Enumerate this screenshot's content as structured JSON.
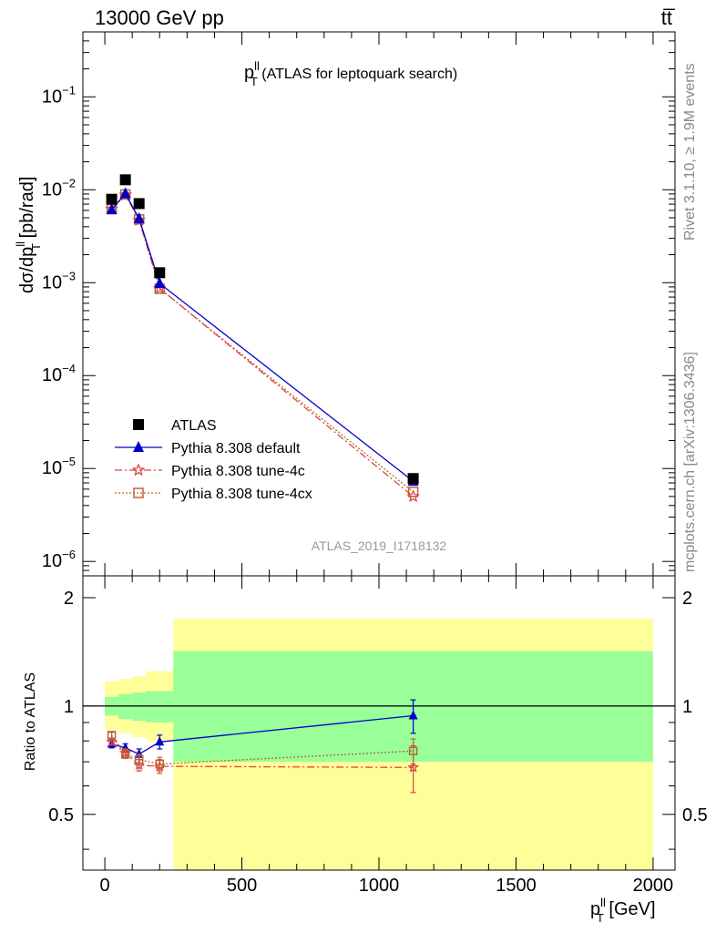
{
  "header": {
    "left": "13000 GeV pp",
    "right": "tt̅"
  },
  "side_labels": {
    "rivet": "Rivet 3.1.10, ≥ 1.9M events",
    "mcplots": "mcplots.cern.ch [arXiv:1306.3436]"
  },
  "top_panel": {
    "title_main": "p",
    "title_sup": "ll",
    "title_sub": "T",
    "title_rest": " (ATLAS for leptoquark search)",
    "ylabel": "dσ/dp",
    "ylabel_sup": "ll",
    "ylabel_sub": "T",
    "ylabel_unit": " [pb/rad]",
    "watermark": "ATLAS_2019_I1718132",
    "ytick_labels": [
      "10",
      "10",
      "10",
      "10",
      "10",
      "10"
    ],
    "ytick_exponents": [
      "−6",
      "−5",
      "−4",
      "−3",
      "−2",
      "−1"
    ]
  },
  "bottom_panel": {
    "ylabel": "Ratio to ATLAS",
    "ytick_labels": [
      "0.5",
      "1",
      "2"
    ],
    "ytick_labels_right": [
      "0.5",
      "1",
      "2"
    ]
  },
  "xaxis": {
    "label_main": "p",
    "label_sup": "ll",
    "label_sub": "T",
    "label_unit": " [GeV]",
    "tick_labels": [
      "0",
      "500",
      "1000",
      "1500",
      "2000"
    ]
  },
  "legend": [
    {
      "name": "ATLAS",
      "color": "#000000",
      "marker": "square-filled",
      "line": "none"
    },
    {
      "name": "Pythia 8.308 default",
      "color": "#0000cc",
      "marker": "triangle-filled",
      "line": "solid"
    },
    {
      "name": "Pythia 8.308 tune-4c",
      "color": "#dd4444",
      "marker": "star-open",
      "line": "dashdot"
    },
    {
      "name": "Pythia 8.308 tune-4cx",
      "color": "#bb6633",
      "marker": "square-open",
      "line": "dotted"
    }
  ],
  "chart_data": [
    {
      "type": "scatter",
      "panel": "main",
      "title": "p_T^ll (ATLAS for leptoquark search)",
      "xlabel": "p_T^ll [GeV]",
      "ylabel": "dσ/dp_T^ll [pb/rad]",
      "yscale": "log",
      "xlim": [
        -80,
        2080
      ],
      "ylim": [
        7e-07,
        0.5
      ],
      "legend_position": "center-left",
      "x": [
        25,
        75,
        125,
        200,
        1125
      ],
      "series": [
        {
          "name": "ATLAS",
          "color": "#000000",
          "values": [
            0.0079,
            0.0128,
            0.0071,
            0.00128,
            7.8e-06
          ]
        },
        {
          "name": "Pythia 8.308 default",
          "color": "#0000cc",
          "values": [
            0.0061,
            0.0091,
            0.0049,
            0.00098,
            7.3e-06
          ]
        },
        {
          "name": "Pythia 8.308 tune-4c",
          "color": "#dd4444",
          "values": [
            0.0062,
            0.0088,
            0.0047,
            0.00087,
            5e-06
          ]
        },
        {
          "name": "Pythia 8.308 tune-4cx",
          "color": "#bb6633",
          "values": [
            0.0062,
            0.0089,
            0.0048,
            0.00086,
            5.6e-06
          ]
        }
      ]
    },
    {
      "type": "line",
      "panel": "ratio",
      "ylabel": "Ratio to ATLAS",
      "xlabel": "p_T^ll [GeV]",
      "yscale": "log",
      "xlim": [
        -80,
        2080
      ],
      "ylim": [
        0.35,
        2.3
      ],
      "reference_line": 1,
      "bands": [
        {
          "x_edges": [
            0,
            50,
            100,
            150,
            250,
            2000
          ],
          "inner": [
            [
              0.94,
              1.06
            ],
            [
              0.92,
              1.08
            ],
            [
              0.91,
              1.09
            ],
            [
              0.9,
              1.1
            ],
            [
              0.7,
              1.42
            ]
          ],
          "outer": [
            [
              0.86,
              1.17
            ],
            [
              0.84,
              1.19
            ],
            [
              0.82,
              1.21
            ],
            [
              0.8,
              1.25
            ],
            [
              0.35,
              1.75
            ]
          ],
          "inner_color": "#99ff99",
          "outer_color": "#ffff99"
        }
      ],
      "x": [
        25,
        75,
        125,
        200,
        1125
      ],
      "series": [
        {
          "name": "Pythia 8.308 default",
          "color": "#0000cc",
          "values": [
            0.785,
            0.765,
            0.735,
            0.795,
            0.94
          ],
          "err": [
            0.02,
            0.02,
            0.025,
            0.035,
            0.1
          ]
        },
        {
          "name": "Pythia 8.308 tune-4c",
          "color": "#dd4444",
          "values": [
            0.795,
            0.74,
            0.685,
            0.68,
            0.675
          ],
          "err": [
            0.015,
            0.02,
            0.025,
            0.03,
            0.1
          ]
        },
        {
          "name": "Pythia 8.308 tune-4cx",
          "color": "#bb6633",
          "values": [
            0.83,
            0.735,
            0.71,
            0.69,
            0.75
          ],
          "err": [
            0.015,
            0.02,
            0.025,
            0.03,
            0.06
          ]
        }
      ]
    }
  ]
}
